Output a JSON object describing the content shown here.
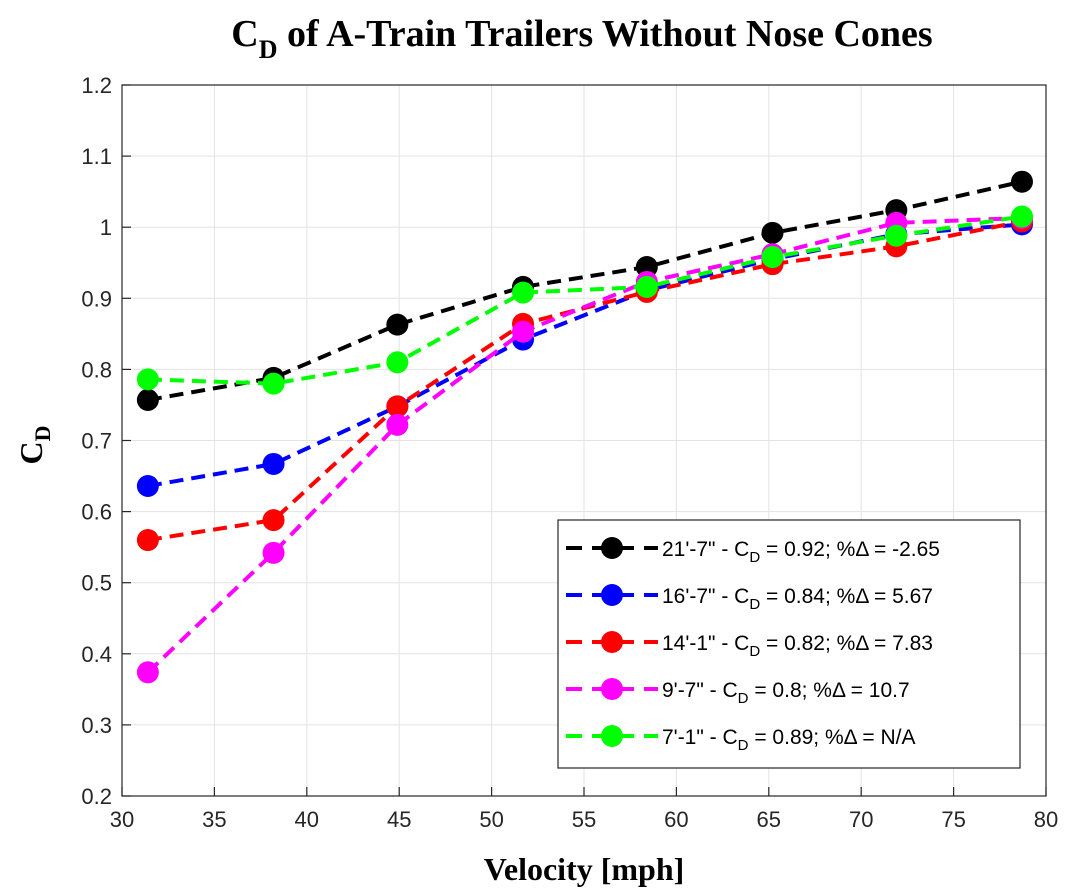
{
  "chart_data": {
    "type": "line",
    "title": {
      "base": "C",
      "sub": "D",
      "rest": " of A-Train Trailers Without Nose Cones"
    },
    "xlabel": "Velocity [mph]",
    "ylabel": {
      "base": "C",
      "sub": "D"
    },
    "xlim": [
      30,
      80
    ],
    "ylim": [
      0.2,
      1.2
    ],
    "xticks": [
      30,
      35,
      40,
      45,
      50,
      55,
      60,
      65,
      70,
      75,
      80
    ],
    "yticks": [
      0.2,
      0.3,
      0.4,
      0.5,
      0.6,
      0.7,
      0.8,
      0.9,
      1,
      1.1,
      1.2
    ],
    "grid": true,
    "legend_position": "bottom-right",
    "x": [
      31.4,
      38.2,
      44.9,
      51.7,
      58.4,
      65.2,
      71.9,
      78.7
    ],
    "series": [
      {
        "name": {
          "pre": "21'-7\" - C",
          "sub": "D",
          "post": " = 0.92; %Δ = -2.65"
        },
        "color": "#000000",
        "values": [
          0.757,
          0.788,
          0.863,
          0.916,
          0.944,
          0.992,
          1.024,
          1.064
        ]
      },
      {
        "name": {
          "pre": "16'-7\" - C",
          "sub": "D",
          "post": " = 0.84; %Δ = 5.67"
        },
        "color": "#0000ff",
        "values": [
          0.636,
          0.667,
          0.748,
          0.842,
          0.911,
          0.955,
          0.99,
          1.004
        ]
      },
      {
        "name": {
          "pre": "14'-1\" - C",
          "sub": "D",
          "post": " = 0.82; %Δ = 7.83"
        },
        "color": "#ff0000",
        "values": [
          0.56,
          0.588,
          0.748,
          0.864,
          0.909,
          0.948,
          0.973,
          1.008
        ]
      },
      {
        "name": {
          "pre": "9'-7\" - C",
          "sub": "D",
          "post": " = 0.8; %Δ = 10.7"
        },
        "color": "#ff00ff",
        "values": [
          0.374,
          0.542,
          0.722,
          0.853,
          0.923,
          0.962,
          1.006,
          1.013
        ]
      },
      {
        "name": {
          "pre": "7'-1\" - C",
          "sub": "D",
          "post": " = 0.89; %Δ = N/A"
        },
        "color": "#00ff00",
        "values": [
          0.786,
          0.78,
          0.81,
          0.908,
          0.916,
          0.958,
          0.988,
          1.015
        ]
      }
    ]
  }
}
